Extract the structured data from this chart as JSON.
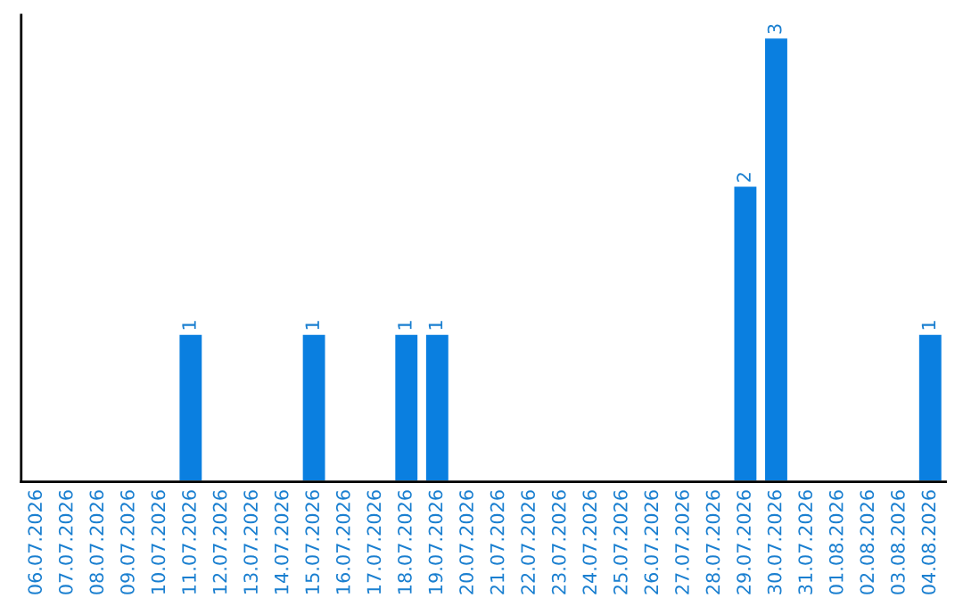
{
  "chart_data": {
    "type": "bar",
    "categories": [
      "06.07.2026",
      "07.07.2026",
      "08.07.2026",
      "09.07.2026",
      "10.07.2026",
      "11.07.2026",
      "12.07.2026",
      "13.07.2026",
      "14.07.2026",
      "15.07.2026",
      "16.07.2026",
      "17.07.2026",
      "18.07.2026",
      "19.07.2026",
      "20.07.2026",
      "21.07.2026",
      "22.07.2026",
      "23.07.2026",
      "24.07.2026",
      "25.07.2026",
      "26.07.2026",
      "27.07.2026",
      "28.07.2026",
      "29.07.2026",
      "30.07.2026",
      "31.07.2026",
      "01.08.2026",
      "02.08.2026",
      "03.08.2026",
      "04.08.2026"
    ],
    "values": [
      0,
      0,
      0,
      0,
      0,
      1,
      0,
      0,
      0,
      1,
      0,
      0,
      1,
      1,
      0,
      0,
      0,
      0,
      0,
      0,
      0,
      0,
      0,
      2,
      3,
      0,
      0,
      0,
      0,
      1
    ],
    "value_labels": [
      null,
      null,
      null,
      null,
      null,
      "1",
      null,
      null,
      null,
      "1",
      null,
      null,
      "1",
      "1",
      null,
      null,
      null,
      null,
      null,
      null,
      null,
      null,
      null,
      "2",
      "3",
      null,
      null,
      null,
      null,
      "1"
    ],
    "color": "#0a7fe0",
    "ylim": [
      0,
      3.15
    ],
    "tick_labels": "x",
    "grid": false,
    "legend": false
  }
}
